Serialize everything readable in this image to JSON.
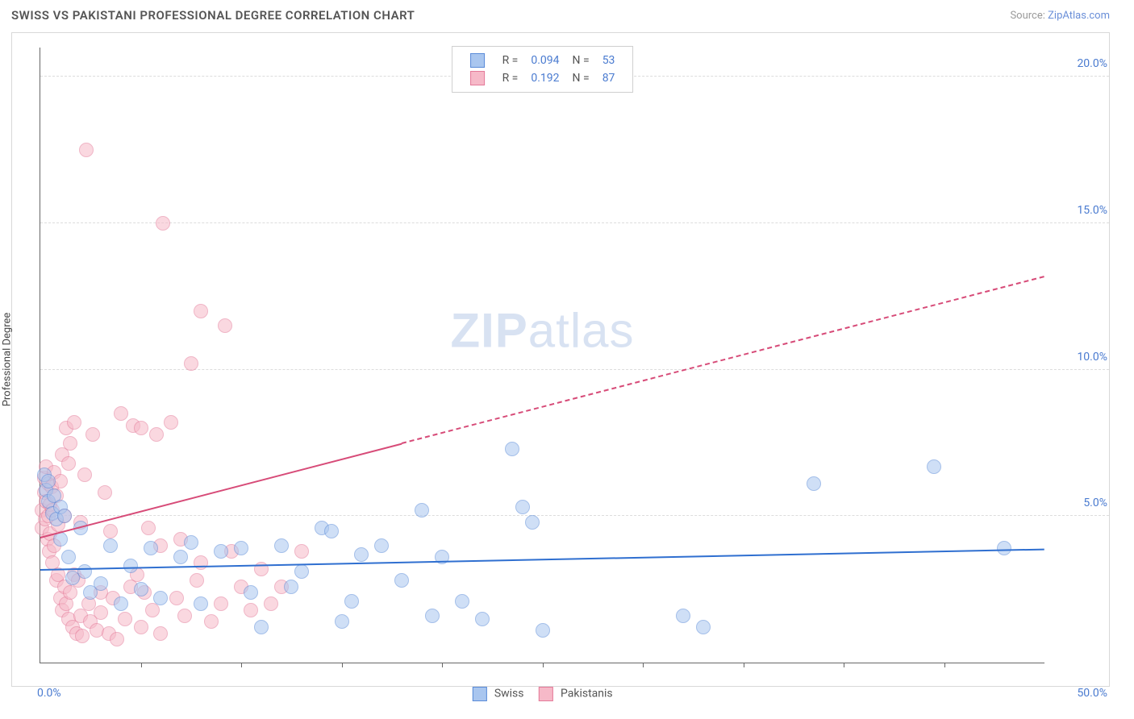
{
  "header": {
    "title": "SWISS VS PAKISTANI PROFESSIONAL DEGREE CORRELATION CHART",
    "source_label": "Source:",
    "source_name": "ZipAtlas.com"
  },
  "ylabel": "Professional Degree",
  "watermark": {
    "bold": "ZIP",
    "rest": "atlas"
  },
  "chart": {
    "type": "scatter",
    "xlim": [
      0,
      50
    ],
    "ylim": [
      0,
      21
    ],
    "x_ticks_minor_step": 5,
    "x_tick_labels": {
      "min": "0.0%",
      "max": "50.0%"
    },
    "y_grid": [
      {
        "v": 5,
        "label": "5.0%"
      },
      {
        "v": 10,
        "label": "10.0%"
      },
      {
        "v": 15,
        "label": "15.0%"
      },
      {
        "v": 20,
        "label": "20.0%"
      }
    ],
    "background_color": "#ffffff",
    "grid_color": "#dcdcdc",
    "axis_color": "#666666",
    "point_radius": 9,
    "point_opacity": 0.55,
    "trend_width": 2
  },
  "series": {
    "swiss": {
      "label": "Swiss",
      "color_fill": "#a9c6ef",
      "color_stroke": "#5a8bd8",
      "R": "0.094",
      "N": "53",
      "trend": {
        "x1": 0,
        "y1": 3.2,
        "x2": 50,
        "y2": 3.9,
        "solid_until_x": 50,
        "color": "#2f6fd0"
      },
      "points": [
        [
          0.2,
          6.4
        ],
        [
          0.3,
          5.9
        ],
        [
          0.4,
          6.2
        ],
        [
          0.4,
          5.5
        ],
        [
          0.6,
          5.1
        ],
        [
          0.7,
          5.7
        ],
        [
          0.8,
          4.9
        ],
        [
          1.0,
          5.3
        ],
        [
          1.0,
          4.2
        ],
        [
          1.2,
          5.0
        ],
        [
          1.4,
          3.6
        ],
        [
          1.6,
          2.9
        ],
        [
          2.0,
          4.6
        ],
        [
          2.2,
          3.1
        ],
        [
          2.5,
          2.4
        ],
        [
          3.0,
          2.7
        ],
        [
          3.5,
          4.0
        ],
        [
          4.0,
          2.0
        ],
        [
          4.5,
          3.3
        ],
        [
          5.0,
          2.5
        ],
        [
          5.5,
          3.9
        ],
        [
          6.0,
          2.2
        ],
        [
          7.0,
          3.6
        ],
        [
          7.5,
          4.1
        ],
        [
          8.0,
          2.0
        ],
        [
          9.0,
          3.8
        ],
        [
          10.0,
          3.9
        ],
        [
          10.5,
          2.4
        ],
        [
          11.0,
          1.2
        ],
        [
          12.0,
          4.0
        ],
        [
          12.5,
          2.6
        ],
        [
          13.0,
          3.1
        ],
        [
          14.0,
          4.6
        ],
        [
          14.5,
          4.5
        ],
        [
          15.0,
          1.4
        ],
        [
          15.5,
          2.1
        ],
        [
          16.0,
          3.7
        ],
        [
          17.0,
          4.0
        ],
        [
          18.0,
          2.8
        ],
        [
          19.0,
          5.2
        ],
        [
          19.5,
          1.6
        ],
        [
          20.0,
          3.6
        ],
        [
          21.0,
          2.1
        ],
        [
          22.0,
          1.5
        ],
        [
          23.5,
          7.3
        ],
        [
          24.0,
          5.3
        ],
        [
          24.5,
          4.8
        ],
        [
          25.0,
          1.1
        ],
        [
          32.0,
          1.6
        ],
        [
          33.0,
          1.2
        ],
        [
          38.5,
          6.1
        ],
        [
          44.5,
          6.7
        ],
        [
          48.0,
          3.9
        ]
      ]
    },
    "pakistanis": {
      "label": "Pakistanis",
      "color_fill": "#f6b9c8",
      "color_stroke": "#e47a99",
      "R": "0.192",
      "N": "87",
      "trend": {
        "x1": 0,
        "y1": 4.3,
        "x2": 50,
        "y2": 13.2,
        "solid_until_x": 18,
        "color": "#d74b78"
      },
      "points": [
        [
          0.1,
          5.2
        ],
        [
          0.1,
          4.6
        ],
        [
          0.2,
          5.8
        ],
        [
          0.2,
          6.3
        ],
        [
          0.25,
          4.9
        ],
        [
          0.3,
          5.5
        ],
        [
          0.3,
          6.7
        ],
        [
          0.35,
          4.2
        ],
        [
          0.4,
          5.0
        ],
        [
          0.4,
          6.1
        ],
        [
          0.45,
          3.8
        ],
        [
          0.5,
          5.4
        ],
        [
          0.5,
          4.4
        ],
        [
          0.55,
          6.0
        ],
        [
          0.6,
          3.4
        ],
        [
          0.6,
          5.2
        ],
        [
          0.7,
          6.5
        ],
        [
          0.7,
          4.0
        ],
        [
          0.8,
          2.8
        ],
        [
          0.8,
          5.7
        ],
        [
          0.9,
          3.0
        ],
        [
          0.9,
          4.7
        ],
        [
          1.0,
          6.2
        ],
        [
          1.0,
          2.2
        ],
        [
          1.1,
          1.8
        ],
        [
          1.1,
          7.1
        ],
        [
          1.2,
          2.6
        ],
        [
          1.2,
          5.0
        ],
        [
          1.3,
          8.0
        ],
        [
          1.3,
          2.0
        ],
        [
          1.4,
          1.5
        ],
        [
          1.4,
          6.8
        ],
        [
          1.5,
          2.4
        ],
        [
          1.5,
          7.5
        ],
        [
          1.6,
          1.2
        ],
        [
          1.7,
          3.0
        ],
        [
          1.7,
          8.2
        ],
        [
          1.8,
          1.0
        ],
        [
          1.9,
          2.8
        ],
        [
          2.0,
          1.6
        ],
        [
          2.0,
          4.8
        ],
        [
          2.1,
          0.9
        ],
        [
          2.2,
          6.4
        ],
        [
          2.3,
          17.5
        ],
        [
          2.4,
          2.0
        ],
        [
          2.5,
          1.4
        ],
        [
          2.6,
          7.8
        ],
        [
          2.8,
          1.1
        ],
        [
          3.0,
          2.4
        ],
        [
          3.0,
          1.7
        ],
        [
          3.2,
          5.8
        ],
        [
          3.4,
          1.0
        ],
        [
          3.5,
          4.5
        ],
        [
          3.6,
          2.2
        ],
        [
          3.8,
          0.8
        ],
        [
          4.0,
          8.5
        ],
        [
          4.2,
          1.5
        ],
        [
          4.5,
          2.6
        ],
        [
          4.6,
          8.1
        ],
        [
          4.8,
          3.0
        ],
        [
          5.0,
          1.2
        ],
        [
          5.0,
          8.0
        ],
        [
          5.2,
          2.4
        ],
        [
          5.4,
          4.6
        ],
        [
          5.6,
          1.8
        ],
        [
          5.8,
          7.8
        ],
        [
          6.0,
          4.0
        ],
        [
          6.0,
          1.0
        ],
        [
          6.1,
          15.0
        ],
        [
          6.5,
          8.2
        ],
        [
          6.8,
          2.2
        ],
        [
          7.0,
          4.2
        ],
        [
          7.2,
          1.6
        ],
        [
          7.5,
          10.2
        ],
        [
          7.8,
          2.8
        ],
        [
          8.0,
          12.0
        ],
        [
          8.0,
          3.4
        ],
        [
          8.5,
          1.4
        ],
        [
          9.0,
          2.0
        ],
        [
          9.2,
          11.5
        ],
        [
          9.5,
          3.8
        ],
        [
          10.0,
          2.6
        ],
        [
          10.5,
          1.8
        ],
        [
          11.0,
          3.2
        ],
        [
          11.5,
          2.0
        ],
        [
          12.0,
          2.6
        ],
        [
          13.0,
          3.8
        ]
      ]
    }
  },
  "legend_top_cols": {
    "R": "R =",
    "N": "N ="
  },
  "legend_bottom_order": [
    "swiss",
    "pakistanis"
  ]
}
